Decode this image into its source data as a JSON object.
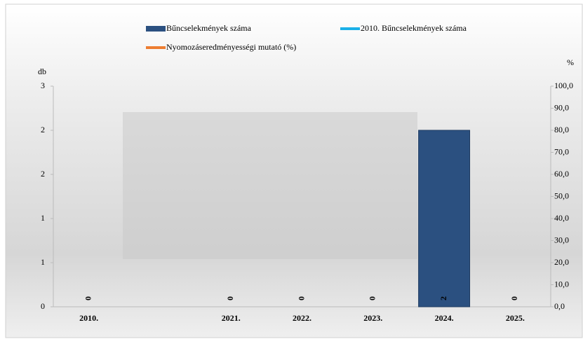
{
  "chart_data": {
    "type": "bar",
    "categories": [
      "2010.",
      null,
      "2021.",
      "2022.",
      "2023.",
      "2024.",
      "2025."
    ],
    "series": [
      {
        "name": "Bűncselekmények száma",
        "type": "bar",
        "color": "#2b5080",
        "values": [
          0,
          null,
          0,
          0,
          0,
          2,
          0
        ]
      },
      {
        "name": "2010. Bűncselekmények száma",
        "type": "line",
        "color": "#1ab0e8",
        "values": [
          null,
          null,
          null,
          null,
          null,
          null,
          null
        ]
      },
      {
        "name": "Nyomozáseredményességi mutató (%)",
        "type": "line",
        "axis": "y2",
        "color": "#ed7d31",
        "values": [
          null,
          null,
          null,
          null,
          null,
          null,
          null
        ]
      }
    ],
    "ylabel": "db",
    "y2label": "%",
    "ylim": [
      0,
      2.5
    ],
    "yticks": [
      0,
      {
        "value": 0.5,
        "label": "1"
      },
      1,
      {
        "value": 1.5,
        "label": "2"
      },
      2,
      {
        "value": 2.5,
        "label": "3"
      }
    ],
    "y2lim": [
      0,
      100
    ],
    "y2ticks": [
      {
        "value": 0,
        "label": "0,0"
      },
      {
        "value": 10,
        "label": "10,0"
      },
      {
        "value": 20,
        "label": "20,0"
      },
      {
        "value": 30,
        "label": "30,0"
      },
      {
        "value": 40,
        "label": "40,0"
      },
      {
        "value": 50,
        "label": "50,0"
      },
      {
        "value": 60,
        "label": "60,0"
      },
      {
        "value": 70,
        "label": "70,0"
      },
      {
        "value": 80,
        "label": "80,0"
      },
      {
        "value": 90,
        "label": "90,0"
      },
      {
        "value": 100,
        "label": "100,0"
      }
    ]
  }
}
